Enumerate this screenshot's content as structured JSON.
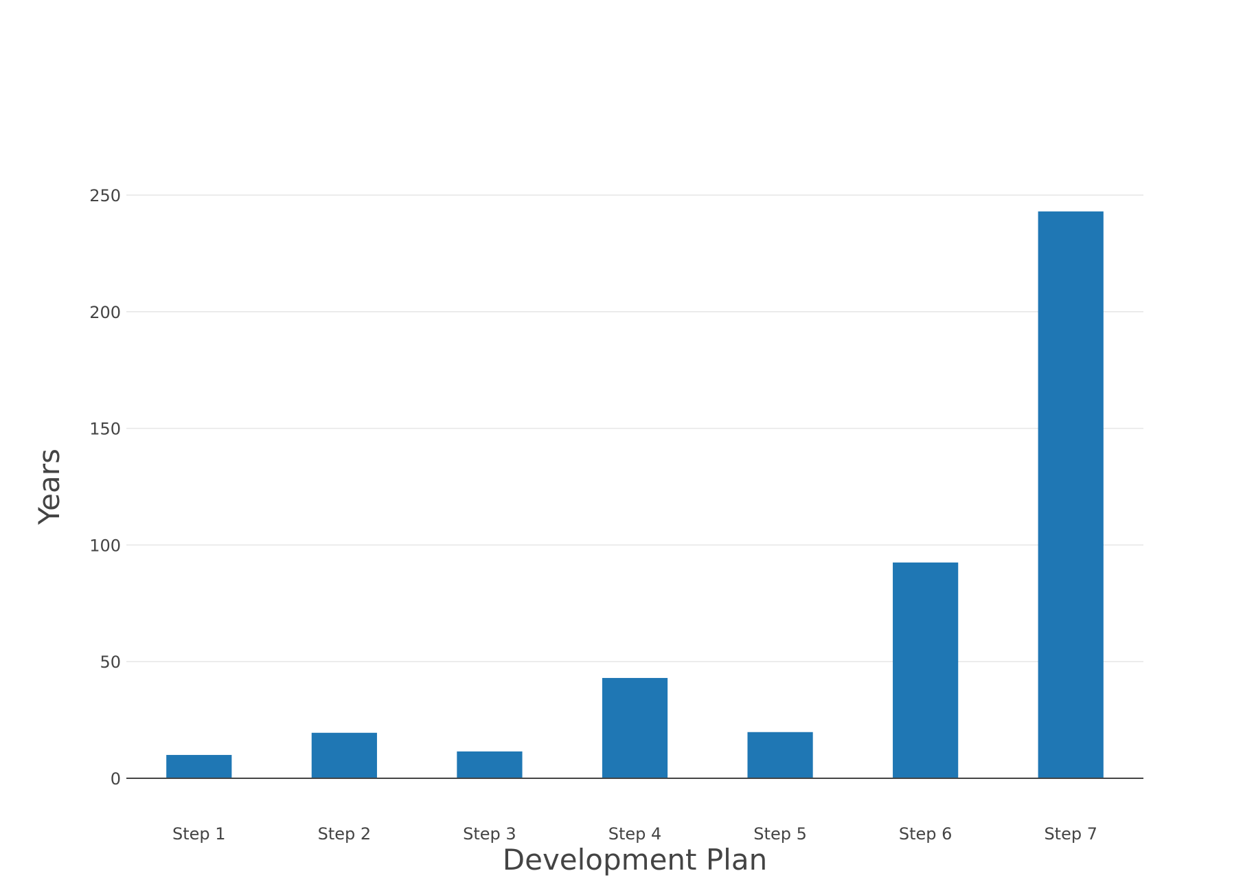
{
  "chart_data": {
    "type": "bar",
    "title": "",
    "xlabel": "Development Plan",
    "ylabel": "Years",
    "categories": [
      "Step 1",
      "Step 2",
      "Step 3",
      "Step 4",
      "Step 5",
      "Step 6",
      "Step 7"
    ],
    "values": [
      10,
      19.5,
      11.5,
      43,
      19.8,
      92.5,
      243
    ],
    "ylim": [
      0,
      250
    ],
    "yticks": [
      0,
      50,
      100,
      150,
      200,
      250
    ],
    "grid": true,
    "legend": "none",
    "bar_color": "#1f77b4"
  }
}
